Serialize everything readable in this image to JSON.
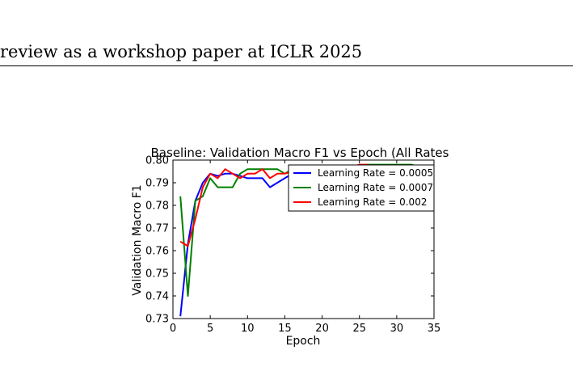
{
  "header": {
    "text": "review as a workshop paper at ICLR 2025"
  },
  "chart_data": {
    "type": "line",
    "title": "Baseline: Validation Macro F1 vs Epoch (All Rates",
    "xlabel": "Epoch",
    "ylabel": "Validation Macro F1",
    "xlim": [
      0,
      35
    ],
    "ylim": [
      0.73,
      0.8
    ],
    "xticks": [
      0,
      5,
      10,
      15,
      20,
      25,
      30,
      35
    ],
    "yticks": [
      0.73,
      0.74,
      0.75,
      0.76,
      0.77,
      0.78,
      0.79,
      0.8
    ],
    "xtick_labels": [
      "0",
      "5",
      "10",
      "15",
      "20",
      "25",
      "30",
      "35"
    ],
    "ytick_labels": [
      "0.73",
      "0.74",
      "0.75",
      "0.76",
      "0.77",
      "0.78",
      "0.79",
      "0.80"
    ],
    "grid": false,
    "legend_position": "top-right",
    "series": [
      {
        "name": "Learning Rate = 0.0005",
        "color": "#0000ff",
        "x": [
          1,
          2,
          3,
          4,
          5,
          6,
          7,
          8,
          9,
          10,
          11,
          12,
          13,
          14,
          15,
          16,
          17,
          18,
          19,
          20,
          21,
          22,
          23,
          24,
          25,
          26,
          27,
          28,
          29,
          30,
          31,
          32,
          33,
          34,
          35
        ],
        "y": [
          0.731,
          0.763,
          0.782,
          0.79,
          0.794,
          0.793,
          0.794,
          0.794,
          0.793,
          0.792,
          0.792,
          0.792,
          0.788,
          0.79,
          0.792,
          0.794,
          0.795,
          0.795,
          0.796,
          0.796,
          0.796,
          0.796,
          0.796,
          0.796,
          0.797,
          0.797,
          0.797,
          0.797,
          0.797,
          0.797,
          0.797,
          0.797,
          0.797,
          0.796,
          0.794
        ]
      },
      {
        "name": "Learning Rate = 0.0007",
        "color": "#008000",
        "x": [
          1,
          2,
          3,
          4,
          5,
          6,
          7,
          8,
          9,
          10,
          11,
          12,
          13,
          14,
          15,
          16,
          17,
          18,
          19,
          20,
          21,
          22,
          23,
          24,
          25,
          26,
          27,
          28,
          29,
          30,
          31,
          32,
          33,
          34,
          35
        ],
        "y": [
          0.784,
          0.74,
          0.782,
          0.784,
          0.792,
          0.788,
          0.788,
          0.788,
          0.794,
          0.796,
          0.796,
          0.796,
          0.796,
          0.796,
          0.794,
          0.796,
          0.797,
          0.797,
          0.797,
          0.797,
          0.797,
          0.797,
          0.797,
          0.797,
          0.797,
          0.798,
          0.798,
          0.798,
          0.798,
          0.798,
          0.798,
          0.798,
          0.797,
          0.797,
          0.797
        ]
      },
      {
        "name": "Learning Rate = 0.002",
        "color": "#ff0000",
        "x": [
          1,
          2,
          3,
          4,
          5,
          6,
          7,
          8,
          9,
          10,
          11,
          12,
          13,
          14,
          15,
          16,
          17,
          18,
          19,
          20,
          21,
          22,
          23,
          24,
          25,
          26,
          27,
          28,
          29,
          30,
          31,
          32,
          33,
          34,
          35
        ],
        "y": [
          0.764,
          0.762,
          0.774,
          0.788,
          0.794,
          0.792,
          0.796,
          0.794,
          0.792,
          0.794,
          0.794,
          0.796,
          0.792,
          0.794,
          0.794,
          0.795,
          0.796,
          0.796,
          0.797,
          0.797,
          0.797,
          0.797,
          0.797,
          0.797,
          0.798,
          0.798,
          0.797,
          0.797,
          0.797,
          0.797,
          0.797,
          0.797,
          0.797,
          0.797,
          0.797
        ]
      }
    ]
  }
}
